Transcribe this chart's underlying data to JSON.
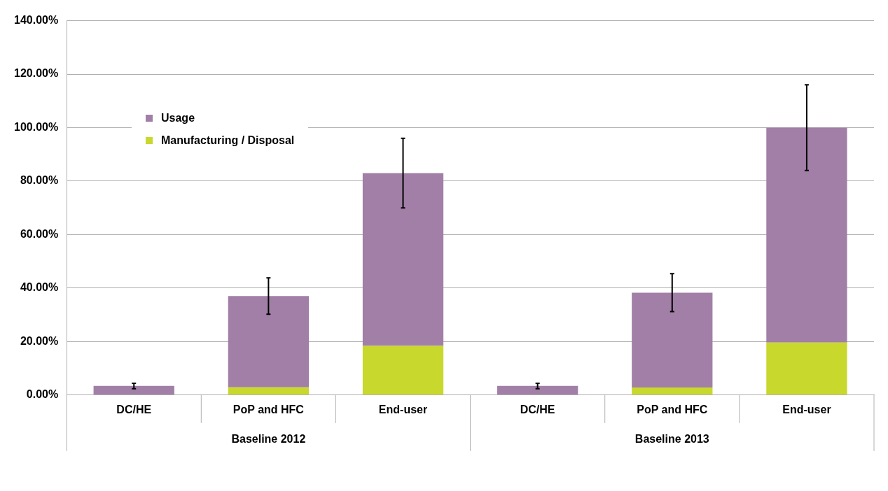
{
  "chart_data": {
    "type": "bar",
    "stacked": true,
    "categories": [
      "DC/HE",
      "PoP and HFC",
      "End-user",
      "DC/HE",
      "PoP and HFC",
      "End-user"
    ],
    "series": [
      {
        "name": "Manufacturing / Disposal",
        "color": "#c8d82c",
        "values": [
          0,
          2.9,
          18.4,
          0,
          2.8,
          19.6
        ]
      },
      {
        "name": "Usage",
        "color": "#a17fa6",
        "values": [
          3.4,
          34.1,
          64.6,
          3.4,
          35.5,
          80.4
        ],
        "errors": [
          1,
          6.8,
          13,
          1,
          7.1,
          16
        ]
      }
    ],
    "ylim": [
      0,
      140
    ],
    "yticks": [
      {
        "value": 0,
        "label": "0.00%"
      },
      {
        "value": 20,
        "label": "20.00%"
      },
      {
        "value": 40,
        "label": "40.00%"
      },
      {
        "value": 60,
        "label": "60.00%"
      },
      {
        "value": 80,
        "label": "80.00%"
      },
      {
        "value": 100,
        "label": "100.00%"
      },
      {
        "value": 120,
        "label": "120.00%"
      },
      {
        "value": 140,
        "label": "140.00%"
      }
    ],
    "grid": "y",
    "legend": "top left",
    "annotations": [
      "Baseline 2012",
      "Baseline 2013"
    ]
  }
}
